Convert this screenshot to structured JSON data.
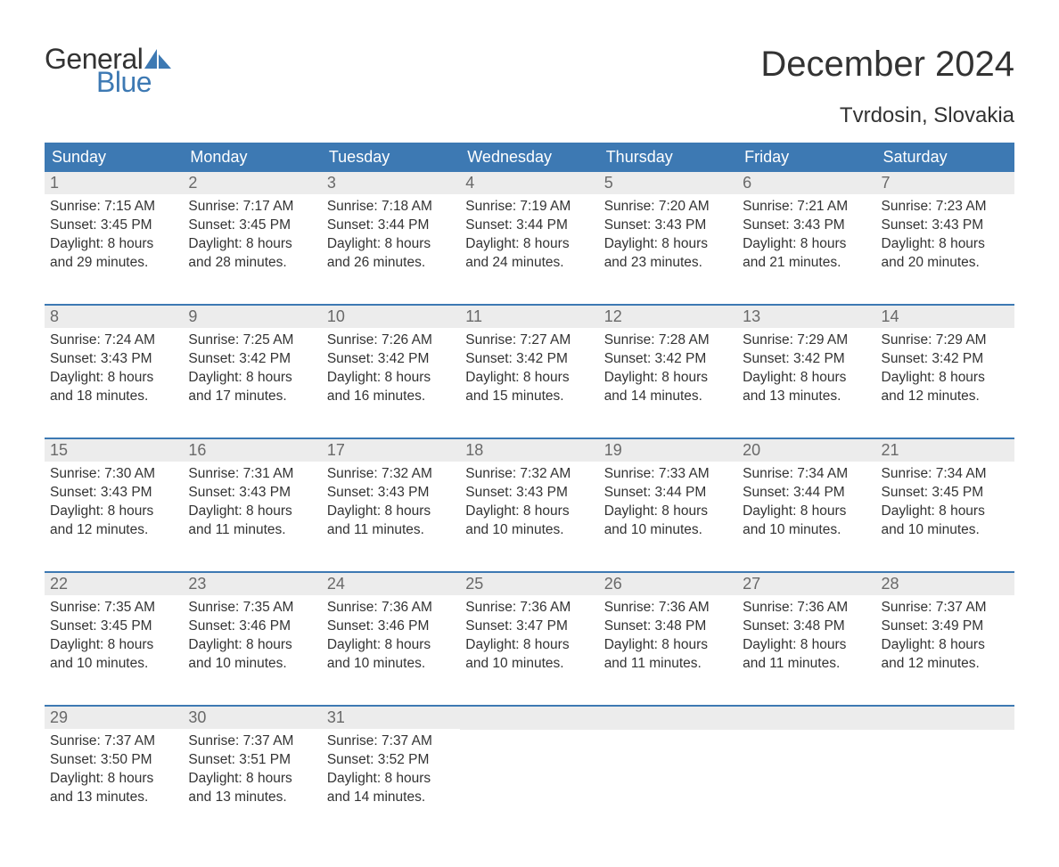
{
  "logo": {
    "text1": "General",
    "text2": "Blue",
    "sail_color": "#3d79b3"
  },
  "title": "December 2024",
  "subtitle": "Tvrdosin, Slovakia",
  "colors": {
    "header_bg": "#3d79b3",
    "header_text": "#ffffff",
    "daynum_bg": "#ececec",
    "daynum_text": "#696969",
    "body_text": "#333333",
    "rule": "#3d79b3"
  },
  "day_headers": [
    "Sunday",
    "Monday",
    "Tuesday",
    "Wednesday",
    "Thursday",
    "Friday",
    "Saturday"
  ],
  "weeks": [
    [
      {
        "n": "1",
        "sr": "7:15 AM",
        "ss": "3:45 PM",
        "dl": "8 hours",
        "dm": "and 29 minutes."
      },
      {
        "n": "2",
        "sr": "7:17 AM",
        "ss": "3:45 PM",
        "dl": "8 hours",
        "dm": "and 28 minutes."
      },
      {
        "n": "3",
        "sr": "7:18 AM",
        "ss": "3:44 PM",
        "dl": "8 hours",
        "dm": "and 26 minutes."
      },
      {
        "n": "4",
        "sr": "7:19 AM",
        "ss": "3:44 PM",
        "dl": "8 hours",
        "dm": "and 24 minutes."
      },
      {
        "n": "5",
        "sr": "7:20 AM",
        "ss": "3:43 PM",
        "dl": "8 hours",
        "dm": "and 23 minutes."
      },
      {
        "n": "6",
        "sr": "7:21 AM",
        "ss": "3:43 PM",
        "dl": "8 hours",
        "dm": "and 21 minutes."
      },
      {
        "n": "7",
        "sr": "7:23 AM",
        "ss": "3:43 PM",
        "dl": "8 hours",
        "dm": "and 20 minutes."
      }
    ],
    [
      {
        "n": "8",
        "sr": "7:24 AM",
        "ss": "3:43 PM",
        "dl": "8 hours",
        "dm": "and 18 minutes."
      },
      {
        "n": "9",
        "sr": "7:25 AM",
        "ss": "3:42 PM",
        "dl": "8 hours",
        "dm": "and 17 minutes."
      },
      {
        "n": "10",
        "sr": "7:26 AM",
        "ss": "3:42 PM",
        "dl": "8 hours",
        "dm": "and 16 minutes."
      },
      {
        "n": "11",
        "sr": "7:27 AM",
        "ss": "3:42 PM",
        "dl": "8 hours",
        "dm": "and 15 minutes."
      },
      {
        "n": "12",
        "sr": "7:28 AM",
        "ss": "3:42 PM",
        "dl": "8 hours",
        "dm": "and 14 minutes."
      },
      {
        "n": "13",
        "sr": "7:29 AM",
        "ss": "3:42 PM",
        "dl": "8 hours",
        "dm": "and 13 minutes."
      },
      {
        "n": "14",
        "sr": "7:29 AM",
        "ss": "3:42 PM",
        "dl": "8 hours",
        "dm": "and 12 minutes."
      }
    ],
    [
      {
        "n": "15",
        "sr": "7:30 AM",
        "ss": "3:43 PM",
        "dl": "8 hours",
        "dm": "and 12 minutes."
      },
      {
        "n": "16",
        "sr": "7:31 AM",
        "ss": "3:43 PM",
        "dl": "8 hours",
        "dm": "and 11 minutes."
      },
      {
        "n": "17",
        "sr": "7:32 AM",
        "ss": "3:43 PM",
        "dl": "8 hours",
        "dm": "and 11 minutes."
      },
      {
        "n": "18",
        "sr": "7:32 AM",
        "ss": "3:43 PM",
        "dl": "8 hours",
        "dm": "and 10 minutes."
      },
      {
        "n": "19",
        "sr": "7:33 AM",
        "ss": "3:44 PM",
        "dl": "8 hours",
        "dm": "and 10 minutes."
      },
      {
        "n": "20",
        "sr": "7:34 AM",
        "ss": "3:44 PM",
        "dl": "8 hours",
        "dm": "and 10 minutes."
      },
      {
        "n": "21",
        "sr": "7:34 AM",
        "ss": "3:45 PM",
        "dl": "8 hours",
        "dm": "and 10 minutes."
      }
    ],
    [
      {
        "n": "22",
        "sr": "7:35 AM",
        "ss": "3:45 PM",
        "dl": "8 hours",
        "dm": "and 10 minutes."
      },
      {
        "n": "23",
        "sr": "7:35 AM",
        "ss": "3:46 PM",
        "dl": "8 hours",
        "dm": "and 10 minutes."
      },
      {
        "n": "24",
        "sr": "7:36 AM",
        "ss": "3:46 PM",
        "dl": "8 hours",
        "dm": "and 10 minutes."
      },
      {
        "n": "25",
        "sr": "7:36 AM",
        "ss": "3:47 PM",
        "dl": "8 hours",
        "dm": "and 10 minutes."
      },
      {
        "n": "26",
        "sr": "7:36 AM",
        "ss": "3:48 PM",
        "dl": "8 hours",
        "dm": "and 11 minutes."
      },
      {
        "n": "27",
        "sr": "7:36 AM",
        "ss": "3:48 PM",
        "dl": "8 hours",
        "dm": "and 11 minutes."
      },
      {
        "n": "28",
        "sr": "7:37 AM",
        "ss": "3:49 PM",
        "dl": "8 hours",
        "dm": "and 12 minutes."
      }
    ],
    [
      {
        "n": "29",
        "sr": "7:37 AM",
        "ss": "3:50 PM",
        "dl": "8 hours",
        "dm": "and 13 minutes."
      },
      {
        "n": "30",
        "sr": "7:37 AM",
        "ss": "3:51 PM",
        "dl": "8 hours",
        "dm": "and 13 minutes."
      },
      {
        "n": "31",
        "sr": "7:37 AM",
        "ss": "3:52 PM",
        "dl": "8 hours",
        "dm": "and 14 minutes."
      },
      null,
      null,
      null,
      null
    ]
  ],
  "labels": {
    "sunrise": "Sunrise: ",
    "sunset": "Sunset: ",
    "daylight": "Daylight: "
  }
}
